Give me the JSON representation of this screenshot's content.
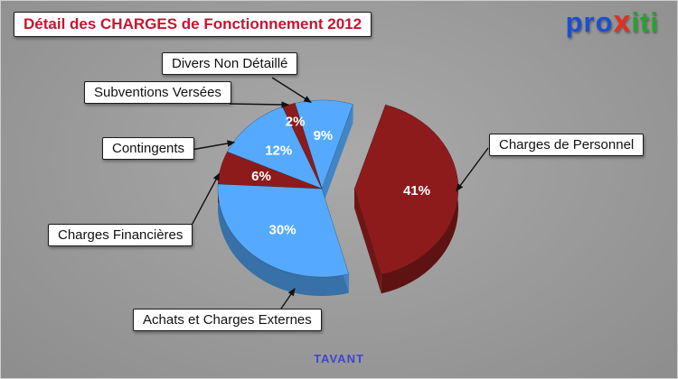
{
  "header": {
    "title": "Détail des CHARGES de Fonctionnement 2012",
    "title_color": "#c81430"
  },
  "logo": {
    "part_pro": "pro",
    "part_x": "x",
    "part_iti": "iti",
    "colors": {
      "pro": "#1c4fd0",
      "x": "#e03020",
      "iti": "#2aa12e"
    }
  },
  "footer": {
    "label": "TAVANT",
    "color": "#4343cc"
  },
  "chart_data": {
    "type": "pie",
    "style": "3d-exploded",
    "title": "Détail des CHARGES de Fonctionnement 2012",
    "unit": "%",
    "start_angle_deg": -15,
    "value_label_format": "{value}%",
    "legend_position": "callouts",
    "footer": "TAVANT",
    "colors": {
      "blue": "#55aaff",
      "maroon": "#8e1b1b"
    },
    "slices": [
      {
        "label": "Divers Non Détaillé",
        "value": 9,
        "color": "#55aaff",
        "exploded": false
      },
      {
        "label": "Charges de Personnel",
        "value": 41,
        "color": "#8e1b1b",
        "exploded": true
      },
      {
        "label": "Achats et Charges Externes",
        "value": 30,
        "color": "#55aaff",
        "exploded": false
      },
      {
        "label": "Charges Financières",
        "value": 6,
        "color": "#8e1b1b",
        "exploded": false
      },
      {
        "label": "Contingents",
        "value": 12,
        "color": "#55aaff",
        "exploded": false
      },
      {
        "label": "Subventions Versées",
        "value": 2,
        "color": "#8e1b1b",
        "exploded": false
      }
    ]
  }
}
